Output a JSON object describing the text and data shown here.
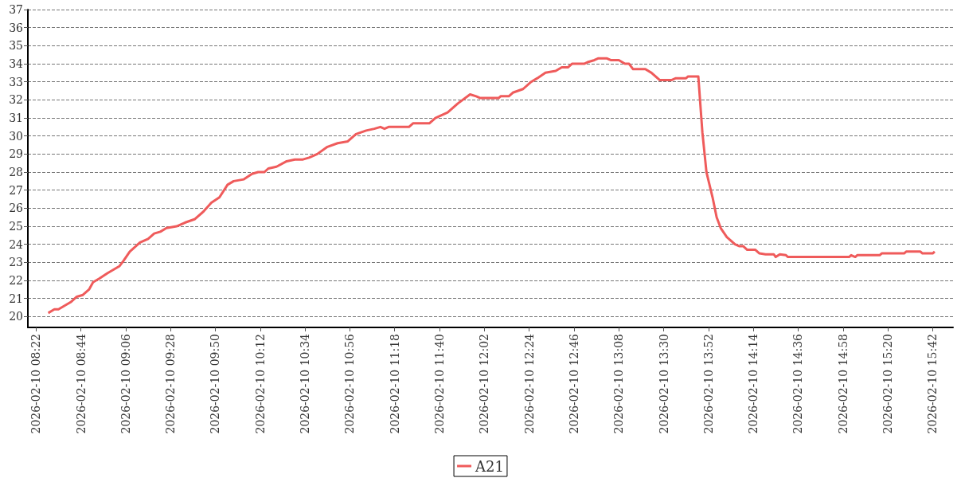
{
  "chart_data": {
    "type": "line",
    "xlim": [
      "2026-02-10T08:18",
      "2026-02-10T15:52"
    ],
    "xticks": [
      {
        "value": "2026-02-10T08:22",
        "label": "2026-02-10 08:22"
      },
      {
        "value": "2026-02-10T08:44",
        "label": "2026-02-10 08:44"
      },
      {
        "value": "2026-02-10T09:06",
        "label": "2026-02-10 09:06"
      },
      {
        "value": "2026-02-10T09:28",
        "label": "2026-02-10 09:28"
      },
      {
        "value": "2026-02-10T09:50",
        "label": "2026-02-10 09:50"
      },
      {
        "value": "2026-02-10T10:12",
        "label": "2026-02-10 10:12"
      },
      {
        "value": "2026-02-10T10:34",
        "label": "2026-02-10 10:34"
      },
      {
        "value": "2026-02-10T10:56",
        "label": "2026-02-10 10:56"
      },
      {
        "value": "2026-02-10T11:18",
        "label": "2026-02-10 11:18"
      },
      {
        "value": "2026-02-10T11:40",
        "label": "2026-02-10 11:40"
      },
      {
        "value": "2026-02-10T12:02",
        "label": "2026-02-10 12:02"
      },
      {
        "value": "2026-02-10T12:24",
        "label": "2026-02-10 12:24"
      },
      {
        "value": "2026-02-10T12:46",
        "label": "2026-02-10 12:46"
      },
      {
        "value": "2026-02-10T13:08",
        "label": "2026-02-10 13:08"
      },
      {
        "value": "2026-02-10T13:30",
        "label": "2026-02-10 13:30"
      },
      {
        "value": "2026-02-10T13:52",
        "label": "2026-02-10 13:52"
      },
      {
        "value": "2026-02-10T14:14",
        "label": "2026-02-10 14:14"
      },
      {
        "value": "2026-02-10T14:36",
        "label": "2026-02-10 14:36"
      },
      {
        "value": "2026-02-10T14:58",
        "label": "2026-02-10 14:58"
      },
      {
        "value": "2026-02-10T15:20",
        "label": "2026-02-10 15:20"
      },
      {
        "value": "2026-02-10T15:42",
        "label": "2026-02-10 15:42"
      }
    ],
    "ylim": [
      19.4,
      37
    ],
    "yticks": [
      20,
      21,
      22,
      23,
      24,
      25,
      26,
      27,
      28,
      29,
      30,
      31,
      32,
      33,
      34,
      35,
      36,
      37
    ],
    "grid": "y",
    "legend": "bottom",
    "marker": "none",
    "line_style": "solid",
    "series": [
      {
        "name": "A21",
        "color": "#ef5b5b",
        "x": [
          "2026-02-10T08:28",
          "2026-02-10T08:31",
          "2026-02-10T08:33",
          "2026-02-10T08:36",
          "2026-02-10T08:39",
          "2026-02-10T08:42",
          "2026-02-10T08:45",
          "2026-02-10T08:48",
          "2026-02-10T08:50",
          "2026-02-10T08:53",
          "2026-02-10T08:57",
          "2026-02-10T09:00",
          "2026-02-10T09:03",
          "2026-02-10T09:05",
          "2026-02-10T09:08",
          "2026-02-10T09:13",
          "2026-02-10T09:17",
          "2026-02-10T09:20",
          "2026-02-10T09:23",
          "2026-02-10T09:26",
          "2026-02-10T09:31",
          "2026-02-10T09:35",
          "2026-02-10T09:40",
          "2026-02-10T09:44",
          "2026-02-10T09:48",
          "2026-02-10T09:52",
          "2026-02-10T09:56",
          "2026-02-10T09:59",
          "2026-02-10T10:04",
          "2026-02-10T10:08",
          "2026-02-10T10:11",
          "2026-02-10T10:14",
          "2026-02-10T10:16",
          "2026-02-10T10:20",
          "2026-02-10T10:25",
          "2026-02-10T10:29",
          "2026-02-10T10:33",
          "2026-02-10T10:36",
          "2026-02-10T10:40",
          "2026-02-10T10:45",
          "2026-02-10T10:50",
          "2026-02-10T10:55",
          "2026-02-10T10:59",
          "2026-02-10T11:04",
          "2026-02-10T11:08",
          "2026-02-10T11:11",
          "2026-02-10T11:13",
          "2026-02-10T11:15",
          "2026-02-10T11:25",
          "2026-02-10T11:27",
          "2026-02-10T11:35",
          "2026-02-10T11:38",
          "2026-02-10T11:44",
          "2026-02-10T11:49",
          "2026-02-10T11:55",
          "2026-02-10T11:58",
          "2026-02-10T12:00",
          "2026-02-10T12:09",
          "2026-02-10T12:10",
          "2026-02-10T12:14",
          "2026-02-10T12:16",
          "2026-02-10T12:21",
          "2026-02-10T12:25",
          "2026-02-10T12:28",
          "2026-02-10T12:32",
          "2026-02-10T12:37",
          "2026-02-10T12:40",
          "2026-02-10T12:43",
          "2026-02-10T12:45",
          "2026-02-10T12:51",
          "2026-02-10T12:53",
          "2026-02-10T12:56",
          "2026-02-10T12:58",
          "2026-02-10T13:02",
          "2026-02-10T13:04",
          "2026-02-10T13:08",
          "2026-02-10T13:11",
          "2026-02-10T13:13",
          "2026-02-10T13:15",
          "2026-02-10T13:16",
          "2026-02-10T13:21",
          "2026-02-10T13:24",
          "2026-02-10T13:28",
          "2026-02-10T13:34",
          "2026-02-10T13:36",
          "2026-02-10T13:41",
          "2026-02-10T13:42",
          "2026-02-10T13:47",
          "2026-02-10T13:49",
          "2026-02-10T13:51",
          "2026-02-10T13:54",
          "2026-02-10T13:56",
          "2026-02-10T13:58",
          "2026-02-10T14:01",
          "2026-02-10T14:05",
          "2026-02-10T14:07",
          "2026-02-10T14:09",
          "2026-02-10T14:11",
          "2026-02-10T14:15",
          "2026-02-10T14:17",
          "2026-02-10T14:20",
          "2026-02-10T14:24",
          "2026-02-10T14:25",
          "2026-02-10T14:27",
          "2026-02-10T14:30",
          "2026-02-10T14:31",
          "2026-02-10T15:01",
          "2026-02-10T15:02",
          "2026-02-10T15:04",
          "2026-02-10T15:05",
          "2026-02-10T15:16",
          "2026-02-10T15:17",
          "2026-02-10T15:28",
          "2026-02-10T15:29",
          "2026-02-10T15:36",
          "2026-02-10T15:37",
          "2026-02-10T15:42",
          "2026-02-10T15:43"
        ],
        "values": [
          20.2,
          20.4,
          20.4,
          20.6,
          20.8,
          21.1,
          21.2,
          21.5,
          21.9,
          22.1,
          22.4,
          22.6,
          22.8,
          23.1,
          23.6,
          24.1,
          24.3,
          24.6,
          24.7,
          24.9,
          25.0,
          25.2,
          25.4,
          25.8,
          26.3,
          26.6,
          27.3,
          27.5,
          27.6,
          27.9,
          28.0,
          28.0,
          28.2,
          28.3,
          28.6,
          28.7,
          28.7,
          28.8,
          29.0,
          29.4,
          29.6,
          29.7,
          30.1,
          30.3,
          30.4,
          30.5,
          30.4,
          30.5,
          30.5,
          30.7,
          30.7,
          31.0,
          31.3,
          31.8,
          32.3,
          32.2,
          32.1,
          32.1,
          32.2,
          32.2,
          32.4,
          32.6,
          33.0,
          33.2,
          33.5,
          33.6,
          33.8,
          33.8,
          34.0,
          34.0,
          34.1,
          34.2,
          34.3,
          34.3,
          34.2,
          34.2,
          34.0,
          34.0,
          33.7,
          33.7,
          33.7,
          33.5,
          33.1,
          33.1,
          33.2,
          33.2,
          33.3,
          33.3,
          30.2,
          28.0,
          26.6,
          25.5,
          24.9,
          24.4,
          24.0,
          23.9,
          23.9,
          23.7,
          23.7,
          23.5,
          23.45,
          23.45,
          23.3,
          23.45,
          23.4,
          23.3,
          23.3,
          23.4,
          23.3,
          23.4,
          23.4,
          23.5,
          23.5,
          23.6,
          23.6,
          23.5,
          23.5,
          23.6
        ]
      }
    ]
  }
}
